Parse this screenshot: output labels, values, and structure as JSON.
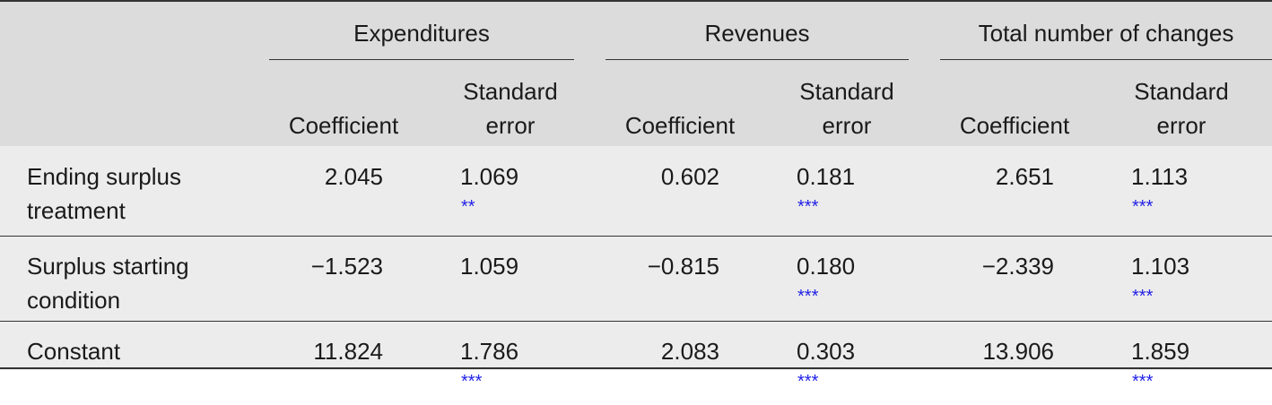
{
  "table": {
    "groups": [
      {
        "title": "Expenditures",
        "columns": [
          "Coefficient",
          "Standard error"
        ]
      },
      {
        "title": "Revenues",
        "columns": [
          "Coefficient",
          "Standard error"
        ]
      },
      {
        "title": "Total number of changes",
        "columns": [
          "Coefficient",
          "Standard error"
        ]
      }
    ],
    "rows": [
      {
        "label": "Ending surplus treatment",
        "cells": [
          {
            "text": "2.045"
          },
          {
            "text": "1.069",
            "stars": "**"
          },
          {
            "text": "0.602"
          },
          {
            "text": "0.181",
            "stars": "***"
          },
          {
            "text": "2.651"
          },
          {
            "text": "1.113",
            "stars": "***"
          }
        ]
      },
      {
        "label": "Surplus starting condition",
        "cells": [
          {
            "text": "−1.523"
          },
          {
            "text": "1.059"
          },
          {
            "text": "−0.815"
          },
          {
            "text": "0.180",
            "stars": "***"
          },
          {
            "text": "−2.339"
          },
          {
            "text": "1.103",
            "stars": "***"
          }
        ]
      },
      {
        "label": "Constant",
        "cells": [
          {
            "text": "11.824"
          },
          {
            "text": "1.786",
            "stars": "***"
          },
          {
            "text": "2.083"
          },
          {
            "text": "0.303",
            "stars": "***"
          },
          {
            "text": "13.906"
          },
          {
            "text": "1.859",
            "stars": "***"
          }
        ]
      }
    ]
  }
}
